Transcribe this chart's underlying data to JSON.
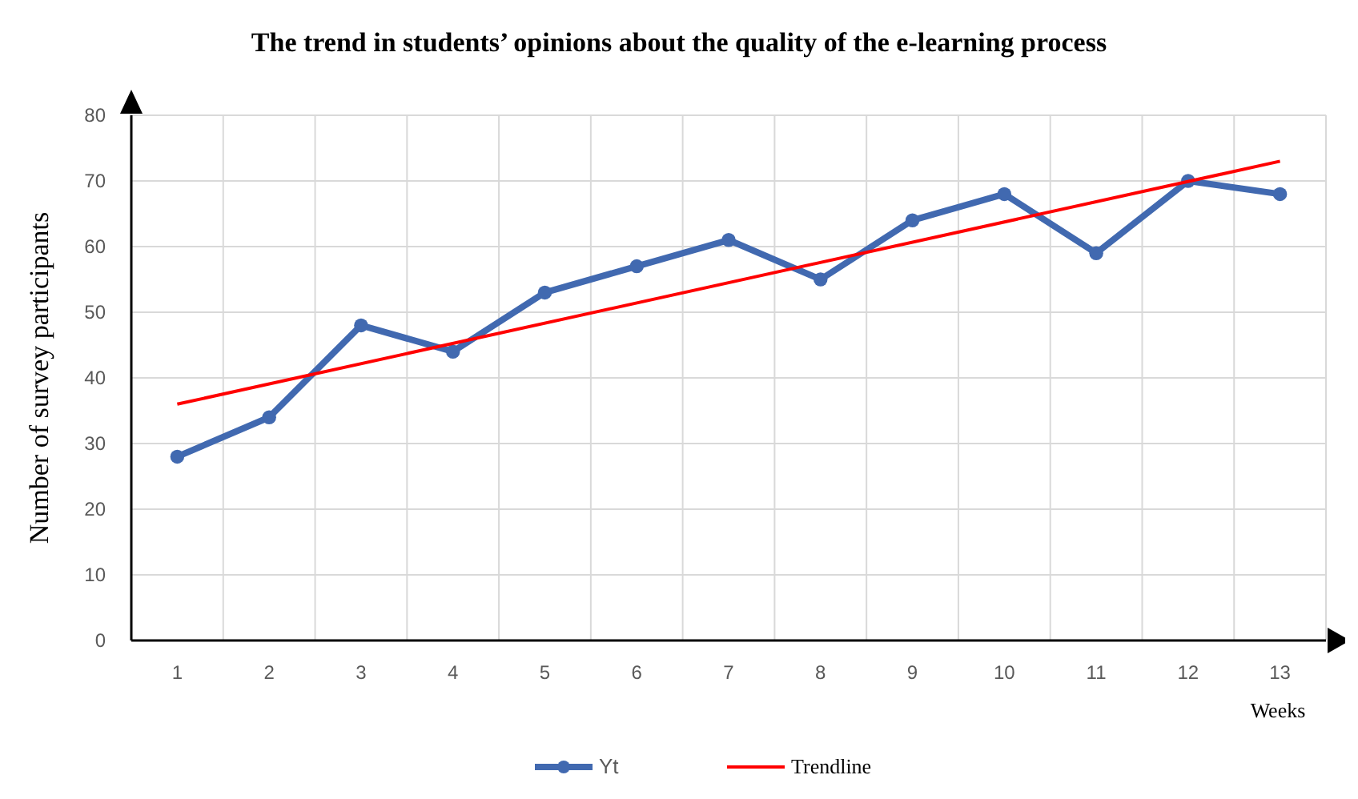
{
  "chart_data": {
    "type": "line",
    "title": "The trend in students’ opinions about the quality of the e-learning process",
    "xlabel": "Weeks",
    "ylabel": "Number of survey participants",
    "x": [
      1,
      2,
      3,
      4,
      5,
      6,
      7,
      8,
      9,
      10,
      11,
      12,
      13
    ],
    "series": [
      {
        "name": "Yt",
        "color": "#4169b0",
        "marker": "circle",
        "values": [
          28,
          34,
          48,
          44,
          53,
          57,
          61,
          55,
          64,
          68,
          59,
          70,
          68
        ]
      },
      {
        "name": "Trendline",
        "type": "line",
        "color": "#ff0000",
        "x": [
          1,
          13
        ],
        "values": [
          36,
          73
        ]
      }
    ],
    "xlim": [
      0.5,
      13.5
    ],
    "xticks": [
      1,
      {
        "value": 1.5,
        "label": null
      },
      2,
      {
        "value": 2.5,
        "label": null
      },
      3,
      {
        "value": 3.5,
        "label": null
      },
      4,
      {
        "value": 4.5,
        "label": null
      },
      5,
      {
        "value": 5.5,
        "label": null
      },
      6,
      {
        "value": 6.5,
        "label": null
      },
      7,
      {
        "value": 7.5,
        "label": null
      },
      8,
      {
        "value": 8.5,
        "label": null
      },
      9,
      {
        "value": 9.5,
        "label": null
      },
      10,
      {
        "value": 10.5,
        "label": null
      },
      11,
      {
        "value": 11.5,
        "label": null
      },
      12,
      {
        "value": 12.5,
        "label": null
      },
      13
    ],
    "ylim": [
      0,
      80
    ],
    "yticks": [
      0,
      10,
      20,
      30,
      40,
      50,
      60,
      70,
      80
    ],
    "grid": true,
    "legend": "bottom"
  }
}
